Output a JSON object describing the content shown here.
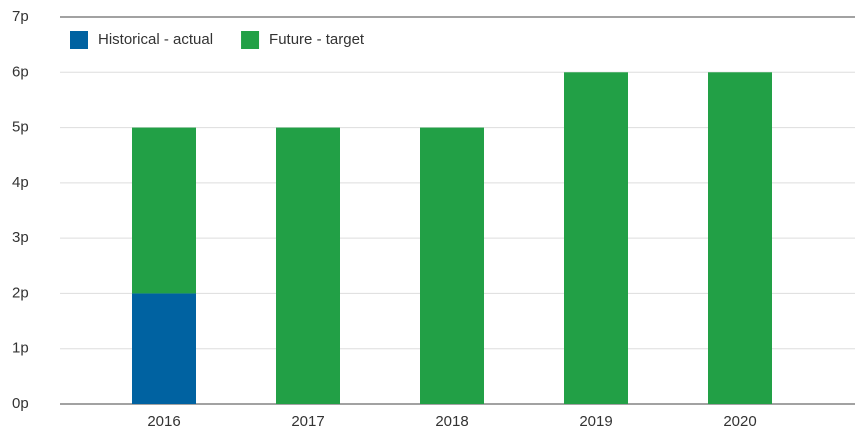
{
  "chart_data": {
    "type": "stacked-bar",
    "categories": [
      "2016",
      "2017",
      "2018",
      "2019",
      "2020"
    ],
    "series": [
      {
        "name": "Historical - actual",
        "color": "#0062a1",
        "values": [
          2,
          0,
          0,
          0,
          0
        ]
      },
      {
        "name": "Future - target",
        "color": "#22a046",
        "values": [
          3,
          5,
          5,
          6,
          6
        ]
      }
    ],
    "ylim": [
      0,
      7
    ],
    "yticks": [
      {
        "value": 0,
        "label": "0p"
      },
      {
        "value": 1,
        "label": "1p"
      },
      {
        "value": 2,
        "label": "2p"
      },
      {
        "value": 3,
        "label": "3p"
      },
      {
        "value": 4,
        "label": "4p"
      },
      {
        "value": 5,
        "label": "5p"
      },
      {
        "value": 6,
        "label": "6p"
      },
      {
        "value": 7,
        "label": "7p"
      }
    ],
    "grid": true,
    "legend": "top-left"
  }
}
